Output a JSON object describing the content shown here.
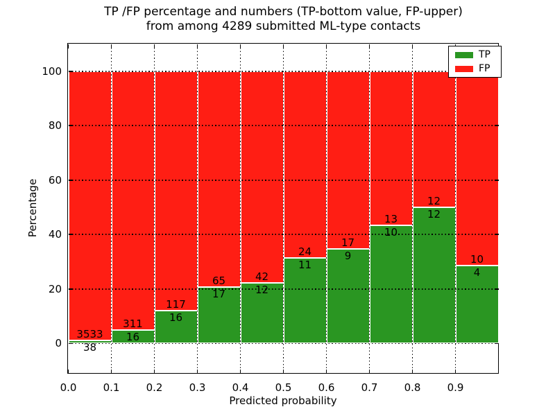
{
  "title": {
    "line1": "TP /FP percentage and numbers (TP-bottom value, FP-upper)",
    "line2": "from among 4289 submitted ML-type contacts"
  },
  "axes": {
    "xlabel": "Predicted probability",
    "ylabel": "Percentage"
  },
  "legend": {
    "items": [
      {
        "label": "TP",
        "color": "#2a9622"
      },
      {
        "label": "FP",
        "color": "#ff1e14"
      }
    ]
  },
  "colors": {
    "tp": "#2a9622",
    "fp": "#ff1e14",
    "grid": "#000000",
    "background": "#ffffff"
  },
  "chart_data": {
    "type": "bar",
    "stacked": true,
    "title": "TP /FP percentage and numbers (TP-bottom value, FP-upper) from among 4289 submitted ML-type contacts",
    "xlabel": "Predicted probability",
    "ylabel": "Percentage",
    "categories": [
      "0.0",
      "0.1",
      "0.2",
      "0.3",
      "0.4",
      "0.5",
      "0.6",
      "0.7",
      "0.8",
      "0.9"
    ],
    "bin_width": 0.1,
    "series": [
      {
        "name": "TP",
        "color": "#2a9622",
        "counts": [
          38,
          16,
          16,
          17,
          12,
          11,
          9,
          10,
          12,
          4
        ]
      },
      {
        "name": "FP",
        "color": "#ff1e14",
        "counts": [
          3533,
          311,
          117,
          65,
          42,
          24,
          17,
          13,
          12,
          10
        ]
      }
    ],
    "tp_percent": [
      1.1,
      4.9,
      12.0,
      20.7,
      22.2,
      31.4,
      34.6,
      43.5,
      50.0,
      28.6
    ],
    "bars_sum_to_percent": 100,
    "xticks": [
      "0.0",
      "0.1",
      "0.2",
      "0.3",
      "0.4",
      "0.5",
      "0.6",
      "0.7",
      "0.8",
      "0.9"
    ],
    "yticks": [
      0,
      20,
      40,
      60,
      80,
      100
    ],
    "xlim": [
      0.0,
      1.0
    ],
    "ylim": [
      -11,
      110
    ],
    "grid": "dotted",
    "legend_position": "upper right"
  }
}
